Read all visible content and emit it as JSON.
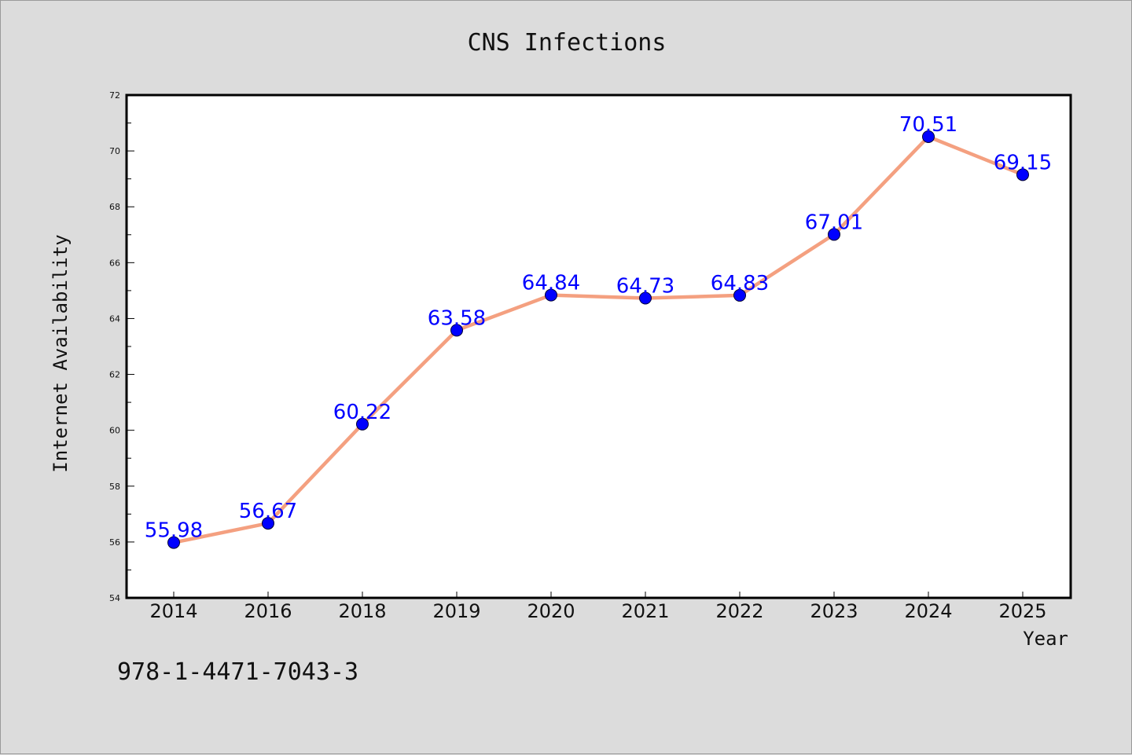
{
  "chart_data": {
    "type": "line",
    "title": "CNS Infections",
    "xlabel": "Year",
    "ylabel": "Internet Availability",
    "categories": [
      "2014",
      "2016",
      "2018",
      "2019",
      "2020",
      "2021",
      "2022",
      "2023",
      "2024",
      "2025"
    ],
    "series": [
      {
        "values": [
          55.98,
          56.67,
          60.22,
          63.58,
          64.84,
          64.73,
          64.83,
          67.01,
          70.51,
          69.15
        ],
        "line_color": "#f4a080",
        "marker_color": "#0000ff",
        "label_color": "#0000ff"
      }
    ],
    "data_labels": [
      "55.98",
      "56.67",
      "60.22",
      "63.58",
      "64.84",
      "64.73",
      "64.83",
      "67.01",
      "70.51",
      "69.15"
    ],
    "ylim": [
      54,
      72
    ],
    "yticks": [
      "54",
      "56",
      "58",
      "60",
      "62",
      "64",
      "66",
      "68",
      "70",
      "72"
    ],
    "grid": false,
    "legend": "none"
  },
  "annotation": "978-1-4471-7043-3",
  "colors": {
    "background": "#dcdcdc",
    "plot_area": "#ffffff",
    "line": "#f4a080",
    "marker": "#0000ff"
  }
}
